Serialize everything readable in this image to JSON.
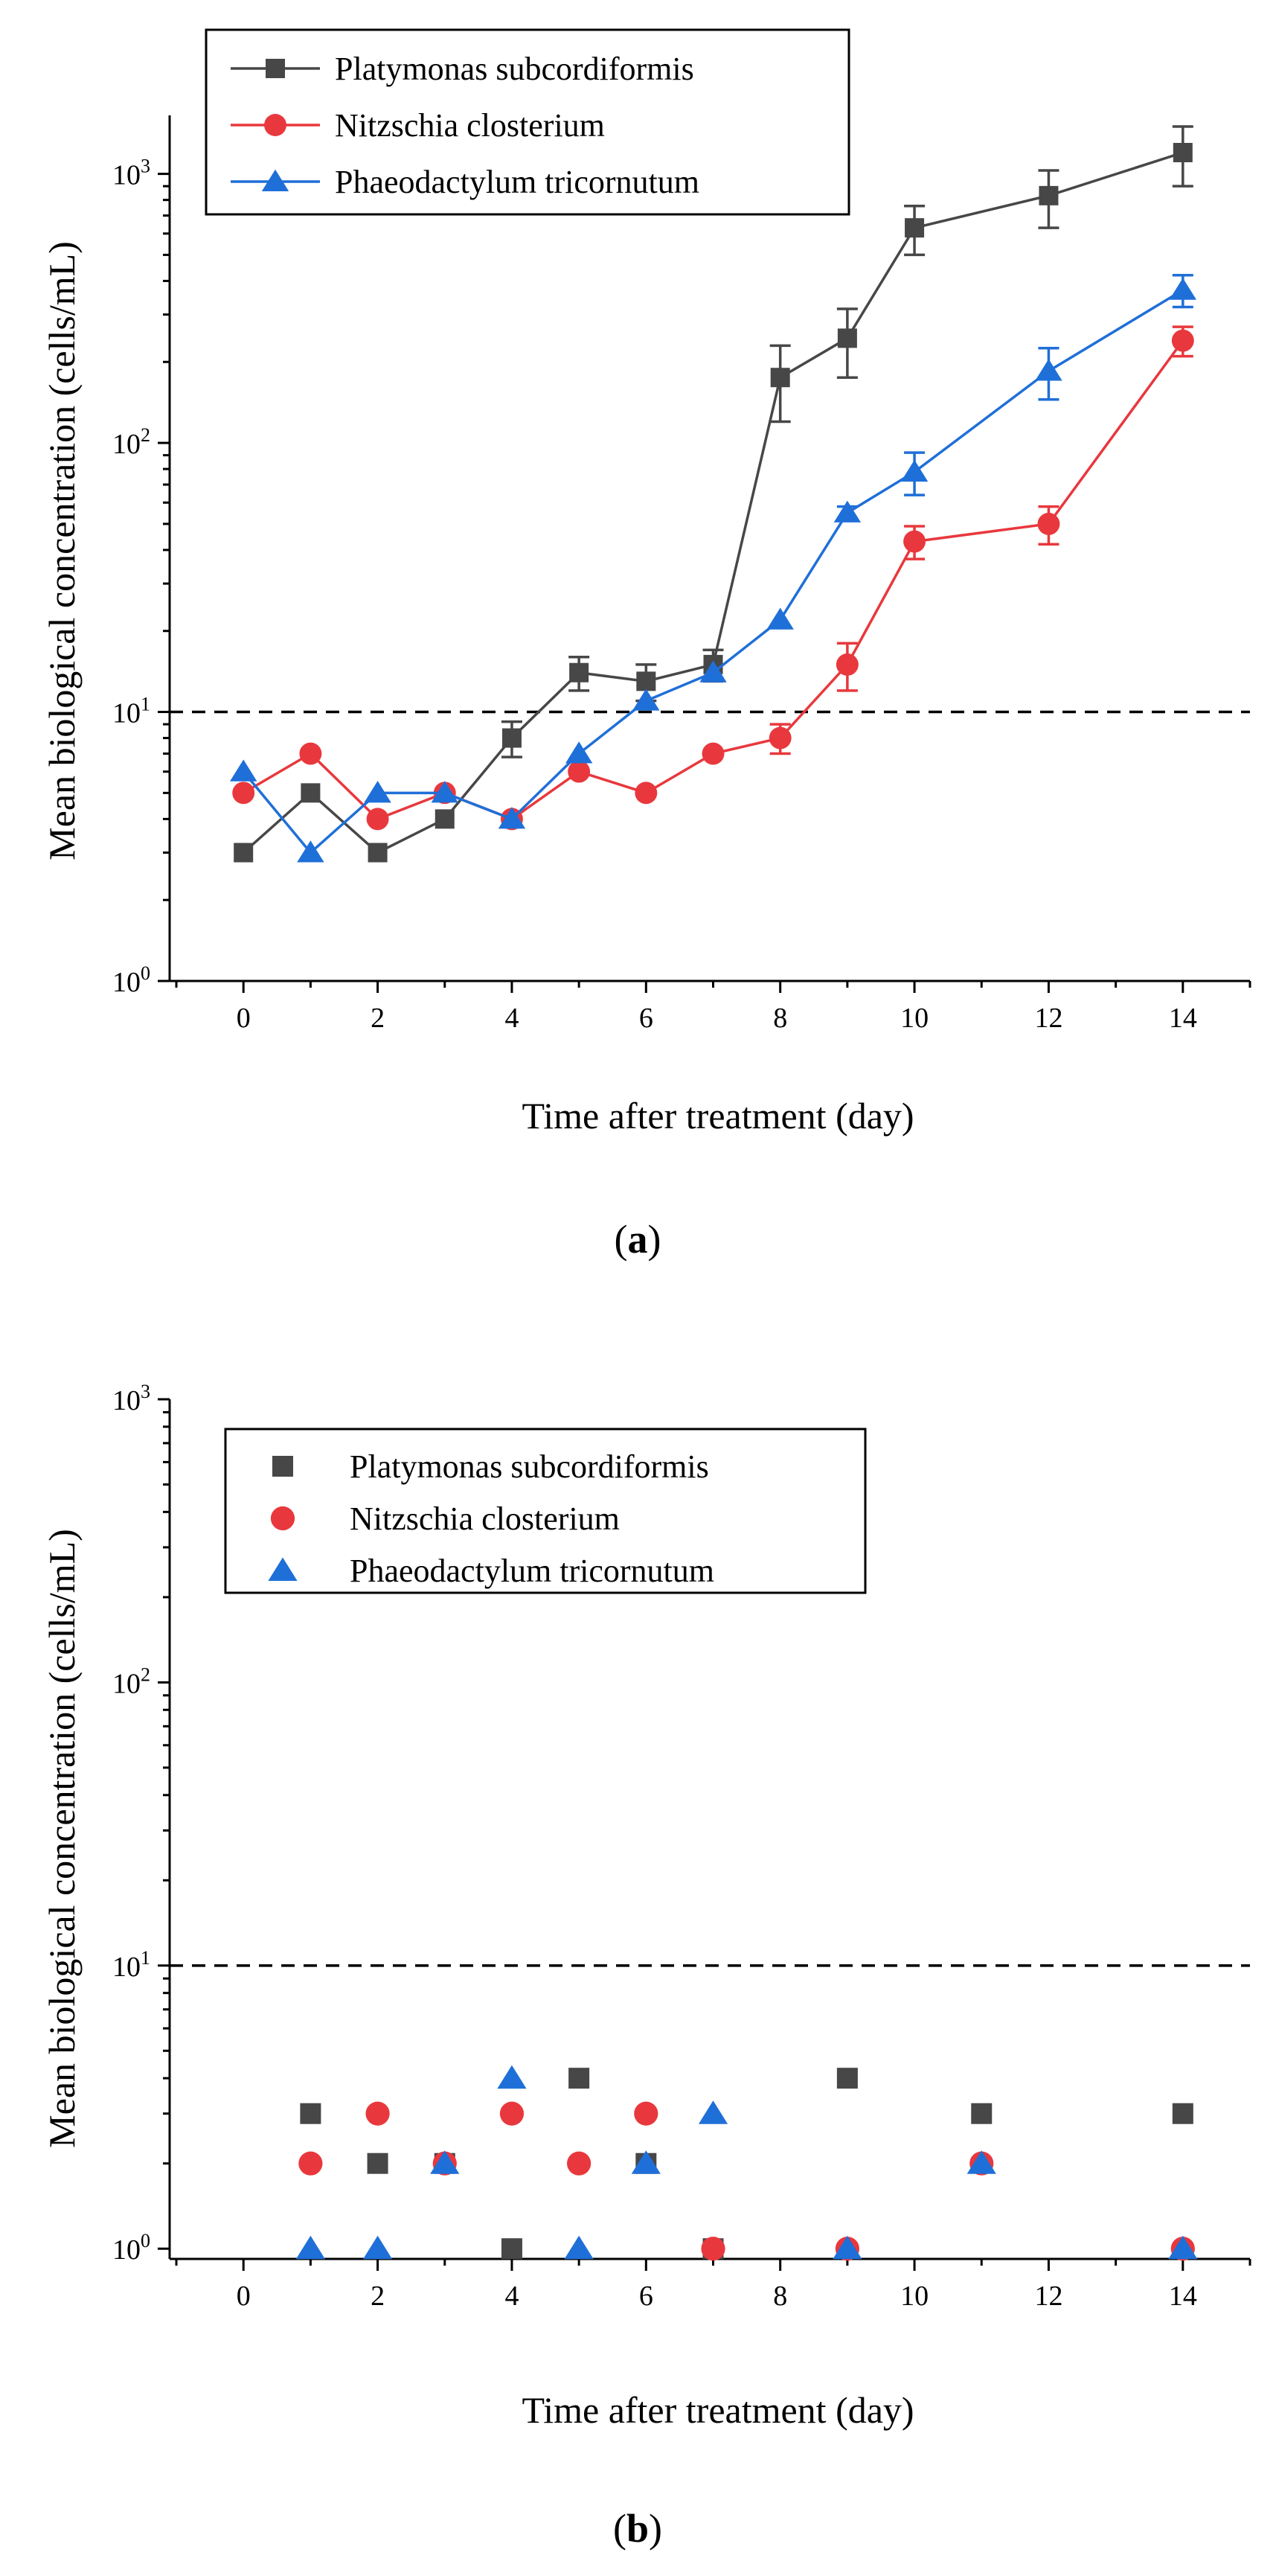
{
  "chart_data": [
    {
      "type": "line",
      "panel_label": "a",
      "xlabel": "Time after treatment (day)",
      "ylabel": "Mean biological concentration (cells/mL)",
      "yscale": "log",
      "xlim": [
        -1.1,
        15
      ],
      "ylim": [
        1,
        1650
      ],
      "xticks": [
        0,
        2,
        4,
        6,
        8,
        10,
        12,
        14
      ],
      "yticks": [
        {
          "value": 1,
          "label": "10",
          "exp": "0"
        },
        {
          "value": 10,
          "label": "10",
          "exp": "1"
        },
        {
          "value": 100,
          "label": "10",
          "exp": "2"
        },
        {
          "value": 1000,
          "label": "10",
          "exp": "3"
        }
      ],
      "reference_line": 10,
      "legend_position": "top-left",
      "series": [
        {
          "name": "Platymonas subcordiformis",
          "color": "#474747",
          "marker": "square",
          "x": [
            0,
            1,
            2,
            3,
            4,
            5,
            6,
            7,
            8,
            9,
            10,
            12,
            14
          ],
          "y": [
            3,
            5,
            3,
            4,
            8,
            14,
            13,
            15,
            175,
            245,
            630,
            830,
            1200
          ],
          "err": [
            0,
            0,
            0,
            0,
            1.2,
            2,
            2,
            2,
            55,
            70,
            130,
            200,
            300
          ]
        },
        {
          "name": "Nitzschia closterium",
          "color": "#e8383d",
          "marker": "circle",
          "x": [
            0,
            1,
            2,
            3,
            4,
            5,
            6,
            7,
            8,
            9,
            10,
            12,
            14
          ],
          "y": [
            5,
            7,
            4,
            5,
            4,
            6,
            5,
            7,
            8,
            15,
            43,
            50,
            240
          ],
          "err": [
            0,
            0,
            0,
            0,
            0,
            0,
            0,
            0,
            1,
            3,
            6,
            8,
            30
          ]
        },
        {
          "name": "Phaeodactylum tricornutum",
          "color": "#1f6fd8",
          "marker": "triangle",
          "x": [
            0,
            1,
            2,
            3,
            4,
            5,
            6,
            7,
            8,
            9,
            10,
            12,
            14
          ],
          "y": [
            6,
            3,
            5,
            5,
            4,
            7,
            11,
            14,
            22,
            55,
            78,
            185,
            370
          ],
          "err": [
            0,
            0,
            0,
            0,
            0,
            0,
            0,
            0,
            0,
            3,
            14,
            40,
            50
          ]
        }
      ]
    },
    {
      "type": "scatter",
      "panel_label": "b",
      "xlabel": "Time after treatment (day)",
      "ylabel": "Mean biological concentration (cells/mL)",
      "yscale": "log",
      "xlim": [
        -1.1,
        15
      ],
      "ylim": [
        0.92,
        1000
      ],
      "xticks": [
        0,
        2,
        4,
        6,
        8,
        10,
        12,
        14
      ],
      "yticks": [
        {
          "value": 1,
          "label": "10",
          "exp": "0"
        },
        {
          "value": 10,
          "label": "10",
          "exp": "1"
        },
        {
          "value": 100,
          "label": "10",
          "exp": "2"
        },
        {
          "value": 1000,
          "label": "10",
          "exp": "3"
        }
      ],
      "reference_line": 10,
      "legend_position": "top-left",
      "series": [
        {
          "name": "Platymonas subcordiformis",
          "color": "#474747",
          "marker": "square",
          "x": [
            1,
            2,
            3,
            4,
            5,
            6,
            7,
            9,
            11,
            14
          ],
          "y": [
            3,
            2,
            2,
            1,
            4,
            2,
            1,
            4,
            3,
            3
          ]
        },
        {
          "name": "Nitzschia closterium",
          "color": "#e8383d",
          "marker": "circle",
          "x": [
            1,
            2,
            3,
            4,
            5,
            6,
            7,
            9,
            11,
            14
          ],
          "y": [
            2,
            3,
            2,
            3,
            2,
            3,
            1,
            1,
            2,
            1
          ]
        },
        {
          "name": "Phaeodactylum tricornutum",
          "color": "#1f6fd8",
          "marker": "triangle",
          "x": [
            1,
            2,
            3,
            4,
            5,
            6,
            7,
            9,
            11,
            14
          ],
          "y": [
            1,
            1,
            2,
            4,
            1,
            2,
            3,
            1,
            2,
            1
          ]
        }
      ]
    }
  ]
}
